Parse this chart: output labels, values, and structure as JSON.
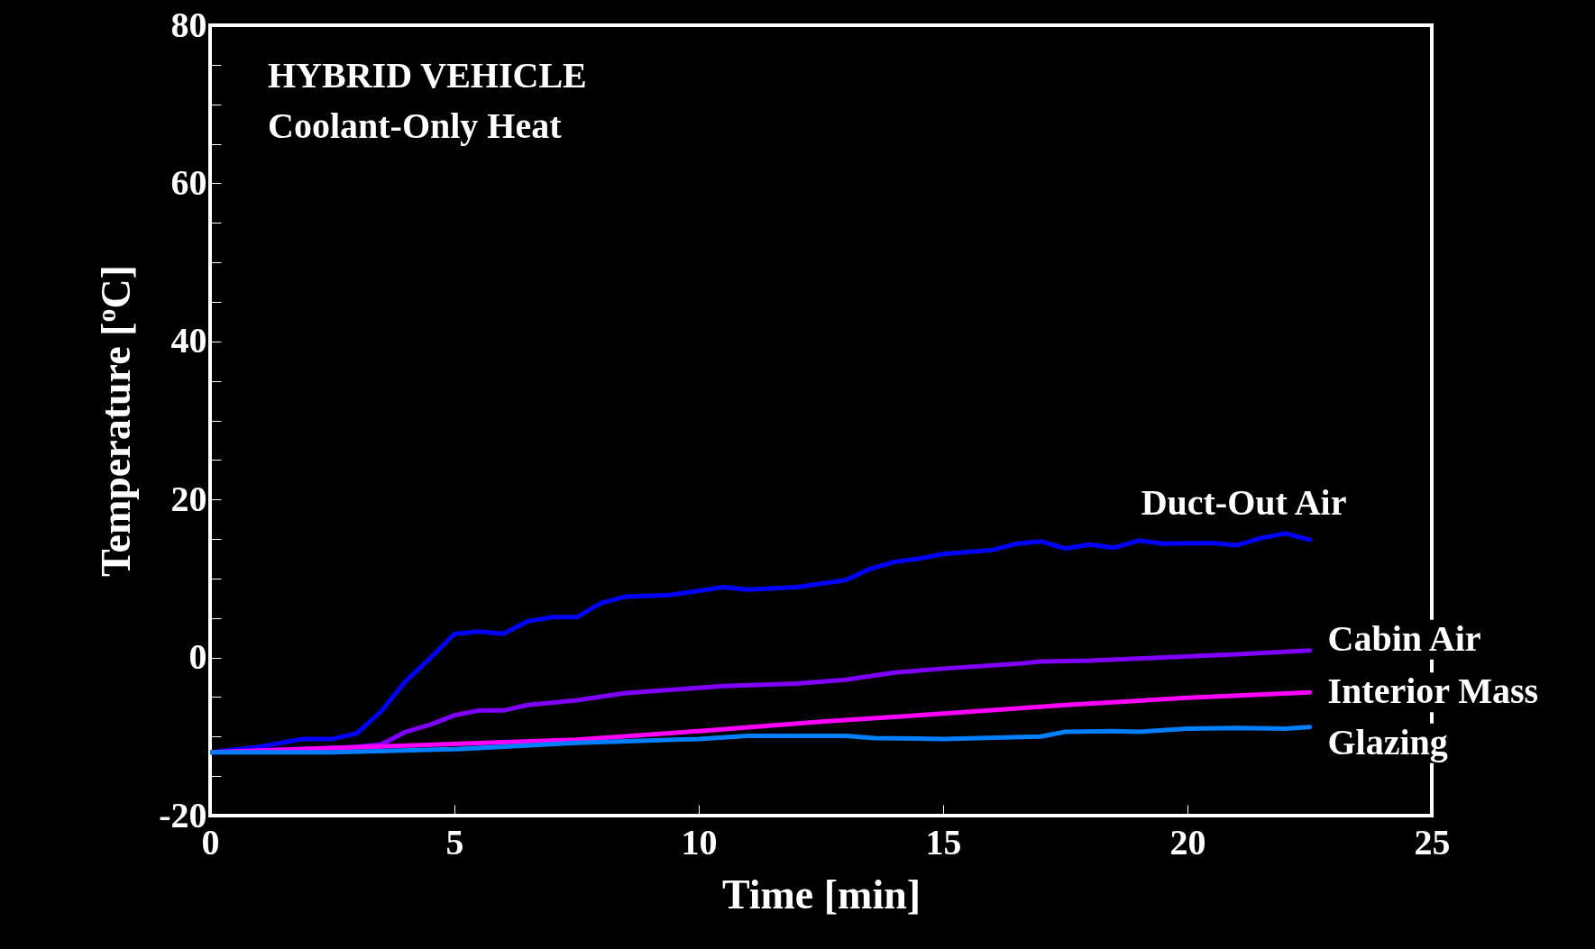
{
  "chart_data": {
    "type": "line",
    "title": "HYBRID VEHICLE",
    "subtitle": "Coolant-Only Heat",
    "xlabel": "Time [min]",
    "ylabel": "Temperature [$^{o}$C]",
    "xlim": [
      0,
      25
    ],
    "xticks": [
      0,
      5,
      10,
      15,
      20,
      25
    ],
    "ylim": [
      -20,
      80
    ],
    "yticks": [
      -20,
      {
        "value": -15,
        "label": null
      },
      {
        "value": -10,
        "label": null
      },
      {
        "value": -5,
        "label": null
      },
      0,
      {
        "value": 5,
        "label": null
      },
      {
        "value": 10,
        "label": null
      },
      {
        "value": 15,
        "label": null
      },
      20,
      {
        "value": 25,
        "label": null
      },
      {
        "value": 30,
        "label": null
      },
      {
        "value": 35,
        "label": null
      },
      40,
      {
        "value": 45,
        "label": null
      },
      {
        "value": 50,
        "label": null
      },
      {
        "value": 55,
        "label": null
      },
      60,
      {
        "value": 65,
        "label": null
      },
      {
        "value": 70,
        "label": null
      },
      {
        "value": 75,
        "label": null
      },
      80
    ],
    "grid": false,
    "legend": false,
    "line_style": "solid",
    "series": [
      {
        "name": "Duct-Out Air",
        "color": "#0000ff",
        "x": [
          0,
          1.0,
          1.9,
          2.5,
          3.0,
          3.5,
          4.0,
          4.5,
          5.0,
          5.5,
          6.0,
          6.5,
          7.0,
          7.5,
          8.0,
          8.5,
          9.4,
          10.5,
          11.0,
          12.0,
          13.0,
          13.5,
          14.0,
          14.5,
          15.0,
          16.0,
          16.5,
          17.0,
          17.5,
          18.0,
          18.5,
          19.0,
          19.5,
          20.5,
          21.0,
          21.5,
          22.0,
          22.5
        ],
        "values": [
          -12,
          -11.3,
          -10.3,
          -10.3,
          -9.6,
          -6.8,
          -3,
          -0.1,
          3,
          3.3,
          3,
          4.6,
          5.1,
          5.1,
          6.9,
          7.7,
          7.9,
          8.9,
          8.6,
          8.9,
          9.8,
          11.2,
          12.1,
          12.5,
          13.1,
          13.6,
          14.4,
          14.7,
          13.8,
          14.3,
          13.9,
          14.8,
          14.4,
          14.5,
          14.2,
          15.1,
          15.7,
          14.9
        ]
      },
      {
        "name": "Cabin Air",
        "color": "#8000ff",
        "x": [
          0,
          3.0,
          3.5,
          4.0,
          4.5,
          5.0,
          5.5,
          6.0,
          6.5,
          7.5,
          8.5,
          9.4,
          10.5,
          12.0,
          13.0,
          14.0,
          15.0,
          16.5,
          17.0,
          18.0,
          19.5,
          21.0,
          22.5
        ],
        "values": [
          -12,
          -11.3,
          -11,
          -9.4,
          -8.5,
          -7.3,
          -6.7,
          -6.7,
          -6,
          -5.4,
          -4.5,
          -4.1,
          -3.6,
          -3.3,
          -2.8,
          -1.9,
          -1.4,
          -0.8,
          -0.5,
          -0.4,
          0,
          0.4,
          0.9
        ]
      },
      {
        "name": "Interior Mass",
        "color": "#ff00ff",
        "x": [
          0,
          7.5,
          10,
          12.5,
          15,
          17.5,
          20,
          22.5
        ],
        "values": [
          -12,
          -10.4,
          -9.3,
          -8.1,
          -7.1,
          -6,
          -5.1,
          -4.4
        ]
      },
      {
        "name": "Glazing",
        "color": "#0080ff",
        "x": [
          0,
          2.5,
          5,
          7.5,
          10,
          11,
          13,
          13.6,
          15,
          17,
          17.5,
          18.5,
          19,
          20,
          21,
          22,
          22.5
        ],
        "values": [
          -12,
          -12,
          -11.6,
          -10.8,
          -10.3,
          -9.9,
          -9.9,
          -10.2,
          -10.3,
          -10,
          -9.4,
          -9.3,
          -9.4,
          -9,
          -8.9,
          -9,
          -8.8
        ]
      }
    ]
  }
}
